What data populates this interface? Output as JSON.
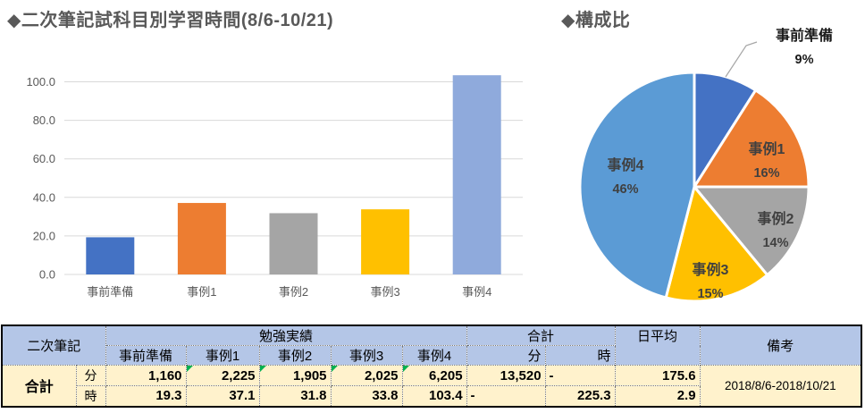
{
  "colors": {
    "blue": "#4472C4",
    "orange": "#ED7D31",
    "gray": "#A5A5A5",
    "yellow": "#FFC000",
    "pie_light_blue": "#5B9BD5",
    "bar_light_blue": "#8FAADC",
    "header_bg": "#B4C6E7",
    "data_bg": "#FFF2CC",
    "title_text": "#595959",
    "gridline": "#D9D9D9",
    "error_triangle_green": "#00B050",
    "leader_line": "#A6A6A6"
  },
  "chart_data": [
    {
      "type": "bar",
      "title": "◆二次筆記試科目別学習時間(8/6-10/21)",
      "categories": [
        "事前準備",
        "事例1",
        "事例2",
        "事例3",
        "事例4"
      ],
      "values": [
        19.3,
        37.1,
        31.8,
        33.8,
        103.4
      ],
      "bar_colors": [
        "#4472C4",
        "#ED7D31",
        "#A5A5A5",
        "#FFC000",
        "#8FAADC"
      ],
      "xlabel": "",
      "ylabel": "",
      "ylim": [
        0,
        100
      ],
      "ytick_values": [
        0,
        20,
        40,
        60,
        80,
        100
      ],
      "yticks": [
        "0.0",
        "20.0",
        "40.0",
        "60.0",
        "80.0",
        "100.0"
      ],
      "grid": true,
      "legend": "none"
    },
    {
      "type": "pie",
      "title": "◆構成比",
      "labels": [
        "事前準備",
        "事例1",
        "事例2",
        "事例3",
        "事例4"
      ],
      "values": [
        9,
        16,
        14,
        15,
        46
      ],
      "percent_labels": [
        "9%",
        "16%",
        "14%",
        "15%",
        "46%"
      ],
      "slice_colors": [
        "#4472C4",
        "#ED7D31",
        "#A5A5A5",
        "#FFC000",
        "#5B9BD5"
      ],
      "start_angle_deg": 0,
      "direction": "clockwise",
      "callout_index": 0,
      "legend": "none"
    }
  ],
  "table": {
    "corner_label": "二次筆記",
    "group_header": "勉強実績",
    "categories": [
      "事前準備",
      "事例1",
      "事例2",
      "事例3",
      "事例4"
    ],
    "total_header": "合計",
    "unit_min": "分",
    "unit_hour": "時",
    "daily_avg_header": "日平均",
    "remarks_header": "備考",
    "row_label": "合計",
    "minutes": {
      "values": [
        "1,160",
        "2,225",
        "1,905",
        "2,025",
        "6,205"
      ],
      "total_min": "13,520",
      "total_hour": "-",
      "daily_avg": "175.6"
    },
    "hours": {
      "values": [
        "19.3",
        "37.1",
        "31.8",
        "33.8",
        "103.4"
      ],
      "total_min": "-",
      "total_hour": "225.3",
      "daily_avg": "2.9"
    },
    "remarks_value": "2018/8/6-2018/10/21"
  }
}
